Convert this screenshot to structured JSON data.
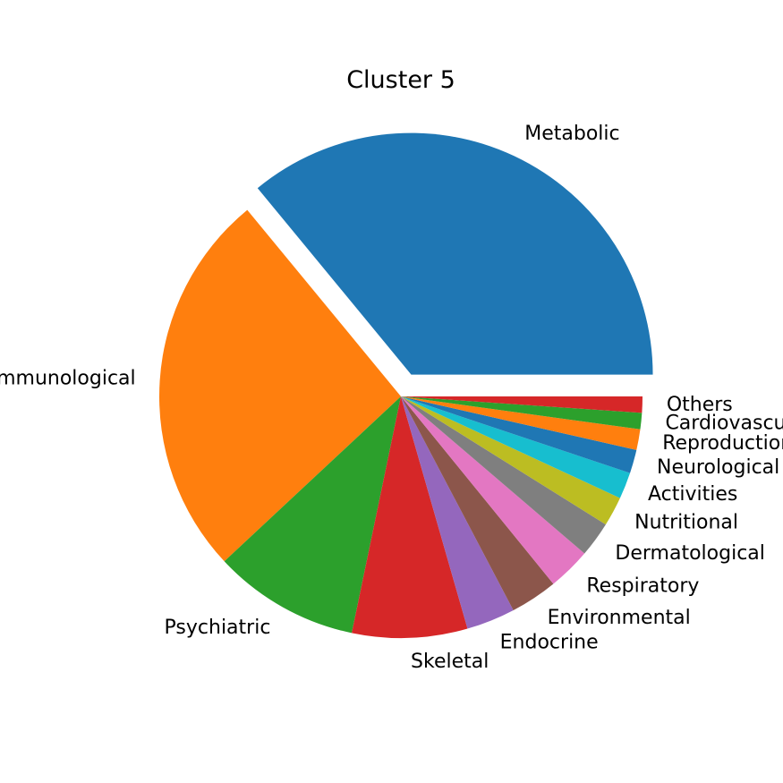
{
  "chart_data": {
    "type": "pie",
    "title": "Cluster 5",
    "categories": [
      "Metabolic",
      "Immunological",
      "Psychiatric",
      "Skeletal",
      "Endocrine",
      "Environmental",
      "Respiratory",
      "Dermatological",
      "Nutritional",
      "Activities",
      "Neurological",
      "Reproduction",
      "Cardiovascular",
      "Others"
    ],
    "values": [
      36.4,
      26.3,
      9.9,
      7.8,
      3.3,
      3.2,
      2.9,
      2.4,
      2.0,
      1.8,
      1.6,
      1.4,
      1.1,
      1.1
    ],
    "colors": [
      "#1f77b4",
      "#ff7f0e",
      "#2ca02c",
      "#d62728",
      "#9467bd",
      "#8c564b",
      "#e377c2",
      "#7f7f7f",
      "#bcbd22",
      "#17becf",
      "#1f77b4",
      "#ff7f0e",
      "#2ca02c",
      "#d62728"
    ],
    "exploded": [
      "Metabolic"
    ],
    "start_angle": "counterclockwise from 0°",
    "legend": "none"
  }
}
